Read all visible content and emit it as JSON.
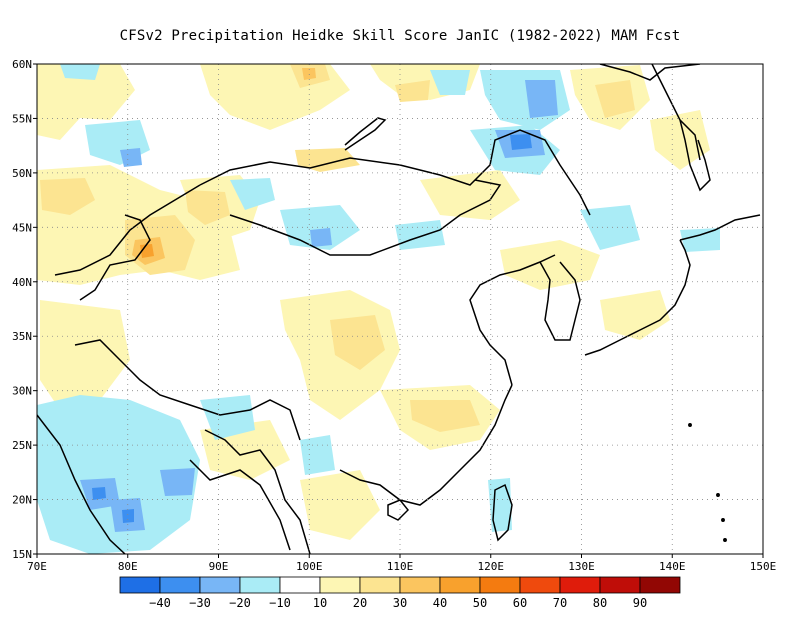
{
  "title": "CFSv2  Precipitation Heidke Skill Score JanIC (1982-2022) MAM Fcst",
  "map": {
    "lon_range": [
      70,
      150
    ],
    "lat_range": [
      15,
      60
    ],
    "lon_ticks": [
      "70E",
      "80E",
      "90E",
      "100E",
      "110E",
      "120E",
      "130E",
      "140E",
      "150E"
    ],
    "lat_ticks": [
      "15N",
      "20N",
      "25N",
      "30N",
      "35N",
      "40N",
      "45N",
      "50N",
      "55N",
      "60N"
    ],
    "grid": "dotted",
    "region": "East Asia"
  },
  "colorbar": {
    "colors": [
      "#1e6fe6",
      "#3d8ff0",
      "#78b6f6",
      "#aaecf6",
      "#ffffff",
      "#fdf6b4",
      "#fce491",
      "#fbc55f",
      "#f8a12d",
      "#f47b10",
      "#ef4a0d",
      "#df1c0b",
      "#bf0d08",
      "#920704"
    ],
    "labels": [
      "−40",
      "−30",
      "−20",
      "−10",
      "10",
      "20",
      "30",
      "40",
      "50",
      "60",
      "70",
      "80",
      "90"
    ]
  }
}
